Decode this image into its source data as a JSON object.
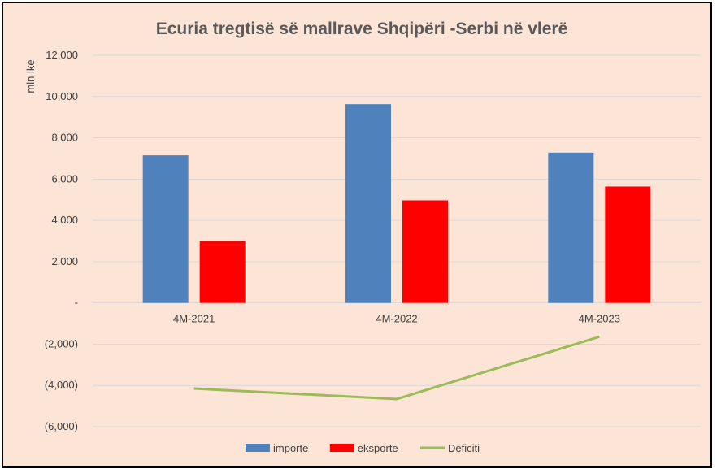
{
  "chart_data": {
    "type": "bar",
    "title": "Ecuria tregtisë së mallrave Shqipëri -Serbi në vlerë",
    "ylabel": "mln lke",
    "xlabel": "",
    "ylim": [
      -6000,
      12000
    ],
    "ytick_values": [
      12000,
      10000,
      8000,
      6000,
      4000,
      2000,
      0,
      -2000,
      -4000,
      -6000
    ],
    "ytick_labels": [
      "12,000",
      "10,000",
      "8,000",
      "6,000",
      "4,000",
      "2,000",
      "-",
      "(2,000)",
      "(4,000)",
      "(6,000)"
    ],
    "categories": [
      "4M-2021",
      "4M-2022",
      "4M-2023"
    ],
    "grid": true,
    "legend_position": "bottom",
    "series": [
      {
        "name": "importe",
        "type": "bar",
        "color": "#4f81bd",
        "values": [
          7150,
          9630,
          7280
        ]
      },
      {
        "name": "eksporte",
        "type": "bar",
        "color": "#ff0000",
        "values": [
          3000,
          4970,
          5640
        ]
      },
      {
        "name": "Deficiti",
        "type": "line",
        "color": "#9bbb59",
        "values": [
          -4150,
          -4660,
          -1640
        ]
      }
    ]
  }
}
